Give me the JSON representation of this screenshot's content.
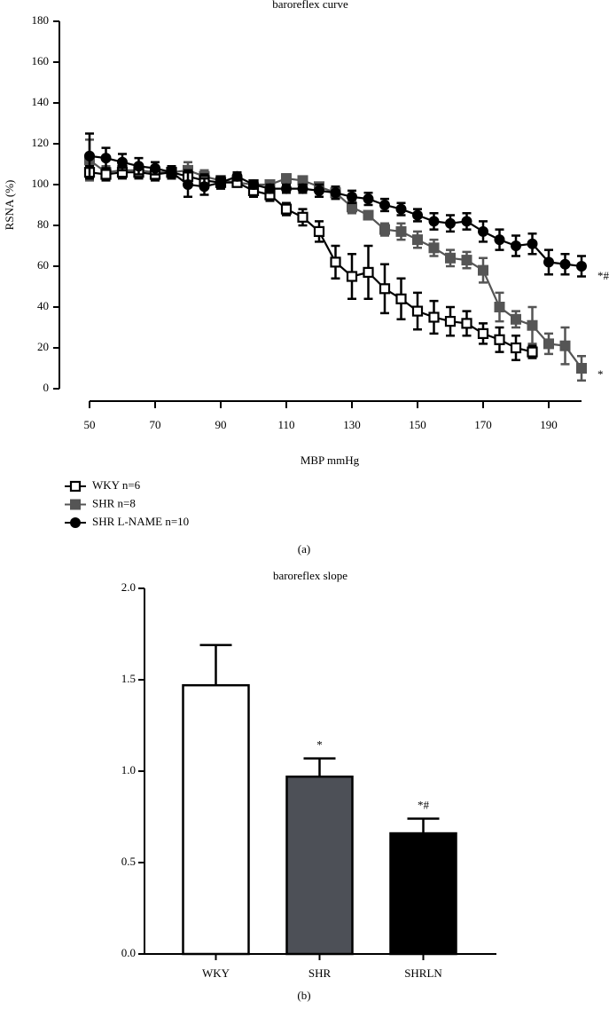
{
  "chart_data": [
    {
      "type": "line",
      "title": "baroreflex curve",
      "panel_label": "(a)",
      "x_label": "MBP mmHg",
      "y_label": "RSNA (%)",
      "x": [
        50,
        55,
        60,
        65,
        70,
        75,
        80,
        85,
        90,
        95,
        100,
        105,
        110,
        115,
        120,
        125,
        130,
        135,
        140,
        145,
        150,
        155,
        160,
        165,
        170,
        175,
        180,
        185,
        190,
        195,
        200
      ],
      "xlim": [
        50,
        200
      ],
      "xticks": [
        50,
        70,
        90,
        110,
        130,
        150,
        170,
        190
      ],
      "ylim": [
        0,
        180
      ],
      "yticks": [
        0,
        20,
        40,
        60,
        80,
        100,
        120,
        140,
        160,
        180
      ],
      "series": [
        {
          "name": "WKY n=6",
          "color": "#000000",
          "marker": "open-square",
          "values": [
            106,
            105,
            106,
            106,
            105,
            106,
            104,
            102,
            101,
            101,
            97,
            95,
            88,
            84,
            77,
            62,
            55,
            57,
            49,
            44,
            38,
            35,
            33,
            32,
            27,
            24,
            20,
            18,
            null,
            null,
            null
          ],
          "errors": [
            3,
            3,
            3,
            3,
            3,
            3,
            3,
            3,
            2,
            2,
            3,
            3,
            3,
            4,
            5,
            8,
            11,
            13,
            12,
            10,
            9,
            8,
            7,
            6,
            5,
            6,
            6,
            3,
            null,
            null,
            null
          ]
        },
        {
          "name": "SHR n=8",
          "color": "#555555",
          "marker": "square",
          "values": [
            112,
            106,
            107,
            107,
            106,
            106,
            107,
            104,
            102,
            101,
            100,
            100,
            103,
            102,
            99,
            96,
            89,
            85,
            78,
            77,
            73,
            69,
            64,
            63,
            58,
            40,
            34,
            31,
            22,
            21,
            10
          ],
          "errors": [
            10,
            3,
            3,
            3,
            3,
            3,
            4,
            3,
            2,
            2,
            2,
            2,
            2,
            2,
            2,
            2,
            3,
            2,
            3,
            4,
            4,
            4,
            4,
            4,
            6,
            7,
            4,
            9,
            5,
            9,
            6
          ]
        },
        {
          "name": "SHR L-NAME n=10",
          "color": "#000000",
          "marker": "circle",
          "values": [
            114,
            113,
            111,
            109,
            108,
            106,
            100,
            99,
            101,
            104,
            100,
            98,
            98,
            98,
            97,
            96,
            94,
            93,
            90,
            88,
            85,
            82,
            81,
            82,
            77,
            73,
            70,
            71,
            62,
            61,
            60
          ],
          "errors": [
            11,
            5,
            4,
            4,
            3,
            3,
            6,
            4,
            3,
            2,
            2,
            2,
            2,
            2,
            3,
            3,
            3,
            3,
            3,
            3,
            3,
            4,
            4,
            4,
            5,
            5,
            5,
            5,
            6,
            5,
            5
          ]
        }
      ],
      "annotations": [
        "*#",
        "*"
      ]
    },
    {
      "type": "bar",
      "title": "baroreflex slope",
      "panel_label": "(b)",
      "categories": [
        "WKY",
        "SHR",
        "SHRLN"
      ],
      "values": [
        1.47,
        0.97,
        0.66
      ],
      "errors": [
        0.22,
        0.1,
        0.08
      ],
      "colors": [
        "#ffffff",
        "#4d5057",
        "#000000"
      ],
      "ylim": [
        0,
        2
      ],
      "yticks": [
        {
          "value": 0,
          "label": "0.0"
        },
        0.5,
        {
          "value": 1,
          "label": "1.0"
        },
        1.5,
        {
          "value": 2,
          "label": "2.0"
        }
      ],
      "annotations": [
        "*",
        "*#"
      ]
    }
  ]
}
